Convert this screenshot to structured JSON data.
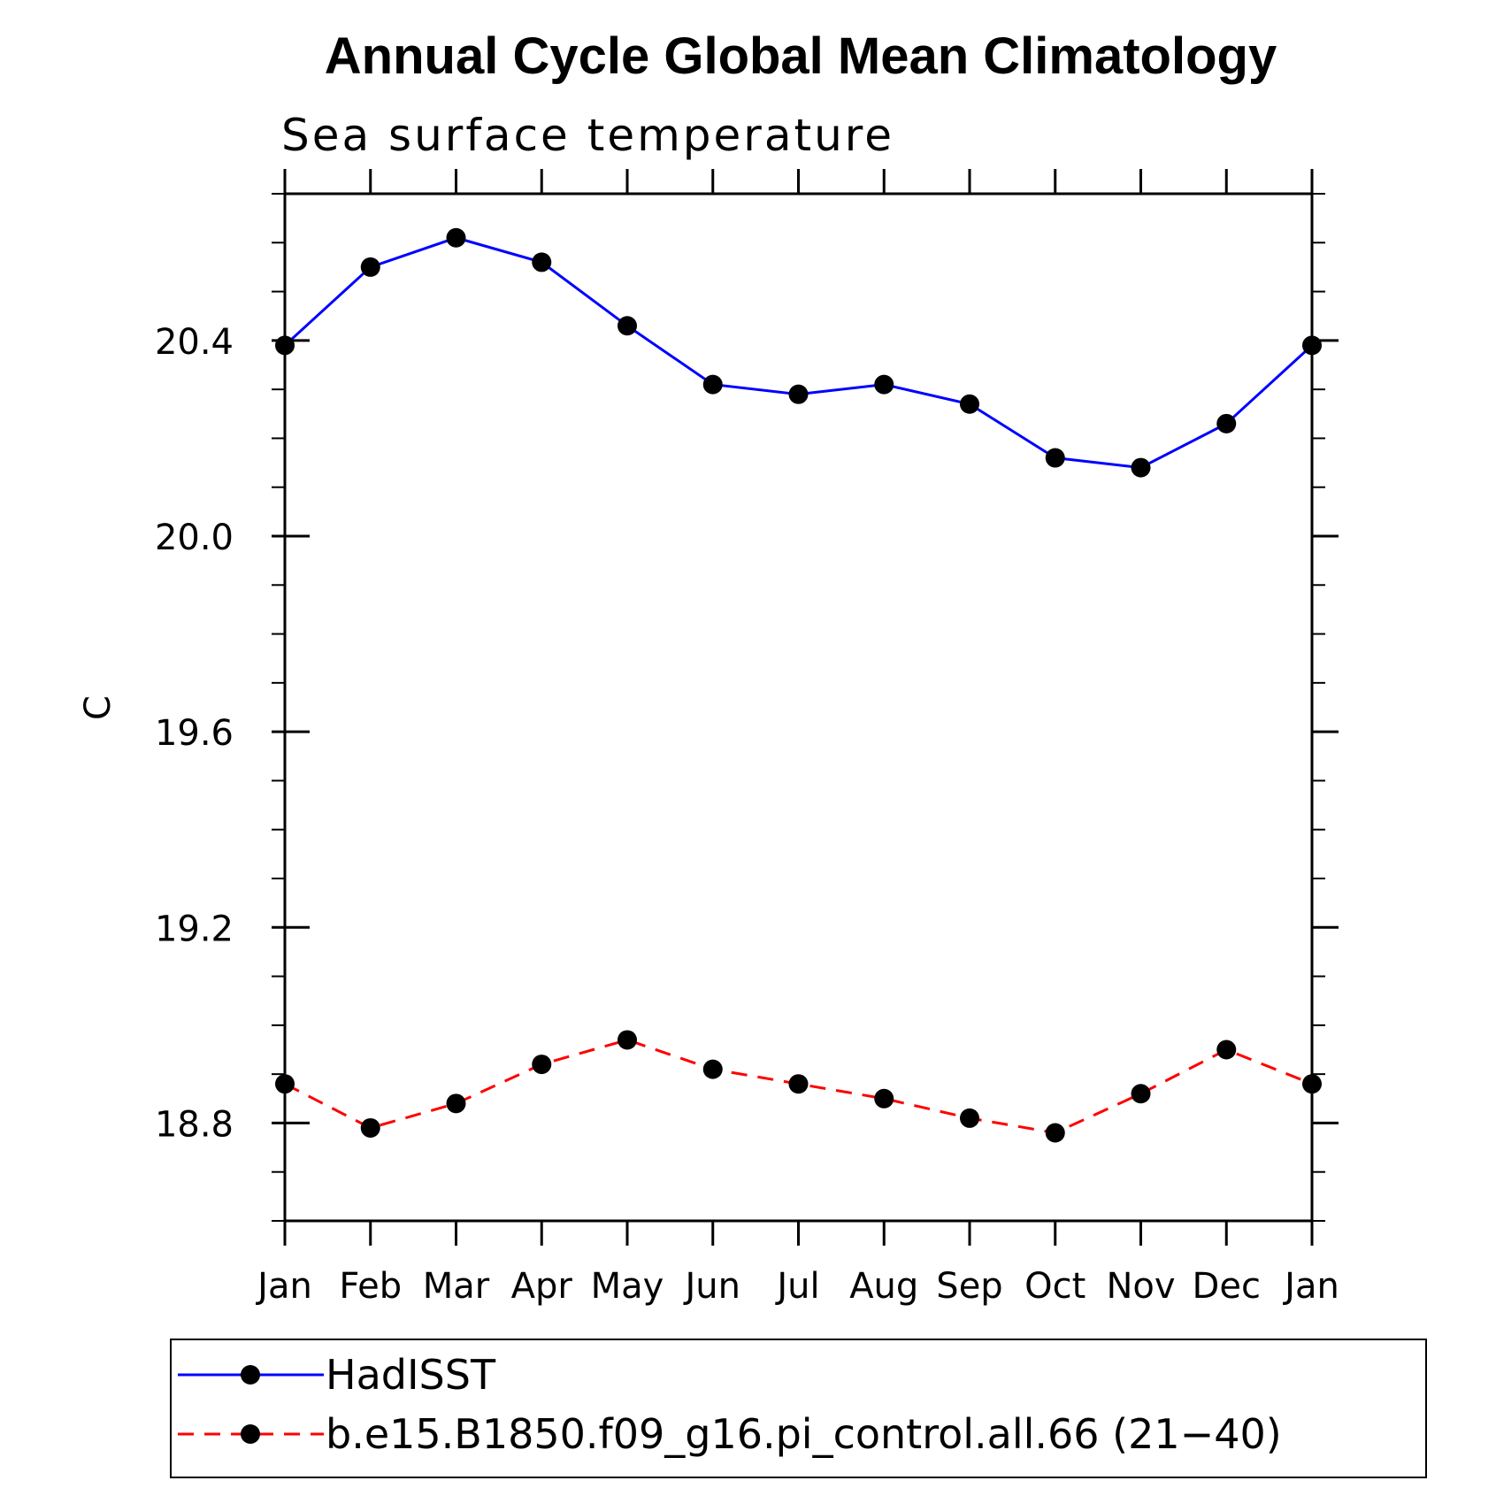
{
  "chart_data": {
    "type": "line",
    "title": "Annual Cycle Global Mean Climatology",
    "subtitle": "Sea surface temperature",
    "xlabel": "",
    "ylabel": "C",
    "categories": [
      "Jan",
      "Feb",
      "Mar",
      "Apr",
      "May",
      "Jun",
      "Jul",
      "Aug",
      "Sep",
      "Oct",
      "Nov",
      "Dec",
      "Jan"
    ],
    "ylim": [
      18.6,
      20.7
    ],
    "yticks": [
      18.8,
      19.2,
      19.6,
      20.0,
      20.4
    ],
    "ytick_labels": [
      "18.8",
      "19.2",
      "19.6",
      "20.0",
      "20.4"
    ],
    "grid": false,
    "legend_position": "bottom",
    "series": [
      {
        "name": "HadISST",
        "color": "#0000ff",
        "line_style": "solid",
        "marker": "filled-circle",
        "marker_color": "#000000",
        "values": [
          20.39,
          20.55,
          20.61,
          20.56,
          20.43,
          20.31,
          20.29,
          20.31,
          20.27,
          20.16,
          20.14,
          20.23,
          20.39
        ]
      },
      {
        "name": "b.e15.B1850.f09_g16.pi_control.all.66 (21−40)",
        "color": "#ff0000",
        "line_style": "dashed",
        "marker": "filled-circle",
        "marker_color": "#000000",
        "values": [
          18.88,
          18.79,
          18.84,
          18.92,
          18.97,
          18.91,
          18.88,
          18.85,
          18.81,
          18.78,
          18.86,
          18.95,
          18.88
        ]
      }
    ]
  }
}
